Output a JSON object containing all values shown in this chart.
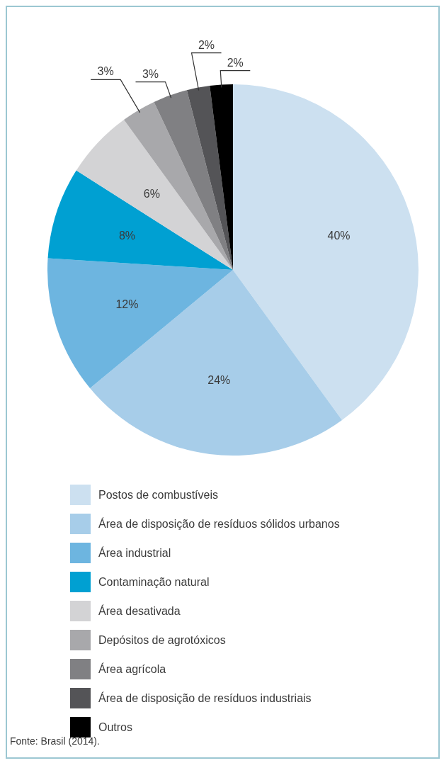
{
  "chart_data": {
    "type": "pie",
    "categories": [
      "Postos de combustíveis",
      "Área de disposição de resíduos sólidos urbanos",
      "Área industrial",
      "Contaminação natural",
      "Área desativada",
      "Depósitos de agrotóxicos",
      "Área agrícola",
      "Área de disposição de resíduos industriais",
      "Outros"
    ],
    "values": [
      40,
      24,
      12,
      8,
      6,
      3,
      3,
      2,
      2
    ],
    "value_labels": [
      "40%",
      "24%",
      "12%",
      "8%",
      "6%",
      "3%",
      "3%",
      "2%",
      "2%"
    ],
    "colors": [
      "#cce0f0",
      "#a7cde9",
      "#6db5e0",
      "#00a0d2",
      "#d3d3d5",
      "#a8a8ab",
      "#808083",
      "#545457",
      "#000000"
    ],
    "legend": "bottom",
    "annotations": [
      "Fonte: Brasil (2014)."
    ]
  }
}
